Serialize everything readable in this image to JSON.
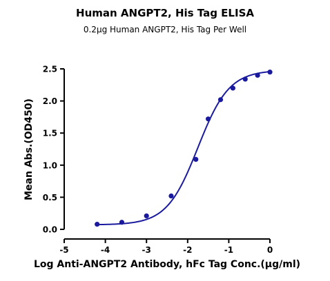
{
  "chart_data": {
    "type": "scatter",
    "title": "Human ANGPT2, His Tag ELISA",
    "subtitle": "0.2μg Human ANGPT2, His Tag Per Well",
    "xlabel": "Log Anti-ANGPT2 Antibody, hFc Tag Conc.(μg/ml)",
    "ylabel": "Mean Abs.(OD450)",
    "xlim": [
      -5,
      0
    ],
    "ylim": [
      0,
      2.5
    ],
    "x_ticks": [
      -5,
      -4,
      -3,
      -2,
      -1,
      0
    ],
    "x_tick_labels": [
      "-5",
      "-4",
      "-3",
      "-2",
      "-1",
      "0"
    ],
    "y_ticks": [
      0.0,
      0.5,
      1.0,
      1.5,
      2.0,
      2.5
    ],
    "y_tick_labels": [
      "0.0",
      "0.5",
      "1.0",
      "1.5",
      "2.0",
      "2.5"
    ],
    "grid": false,
    "series": [
      {
        "x": [
          -4.2,
          -3.6,
          -3.0,
          -2.4,
          -1.8,
          -1.5,
          -1.2,
          -0.9,
          -0.6,
          -0.3,
          0.0
        ],
        "y": [
          0.08,
          0.11,
          0.21,
          0.52,
          1.09,
          1.72,
          2.02,
          2.2,
          2.34,
          2.4,
          2.45
        ],
        "fit": "four-parameter-logistic",
        "color": "#1a1a9e"
      }
    ],
    "fit_params": {
      "bottom": 0.07,
      "top": 2.48,
      "log_ec50": -1.75,
      "hill_slope": 1.15
    },
    "colors": {
      "series": "#1a1a9e",
      "axis": "#000000"
    }
  }
}
